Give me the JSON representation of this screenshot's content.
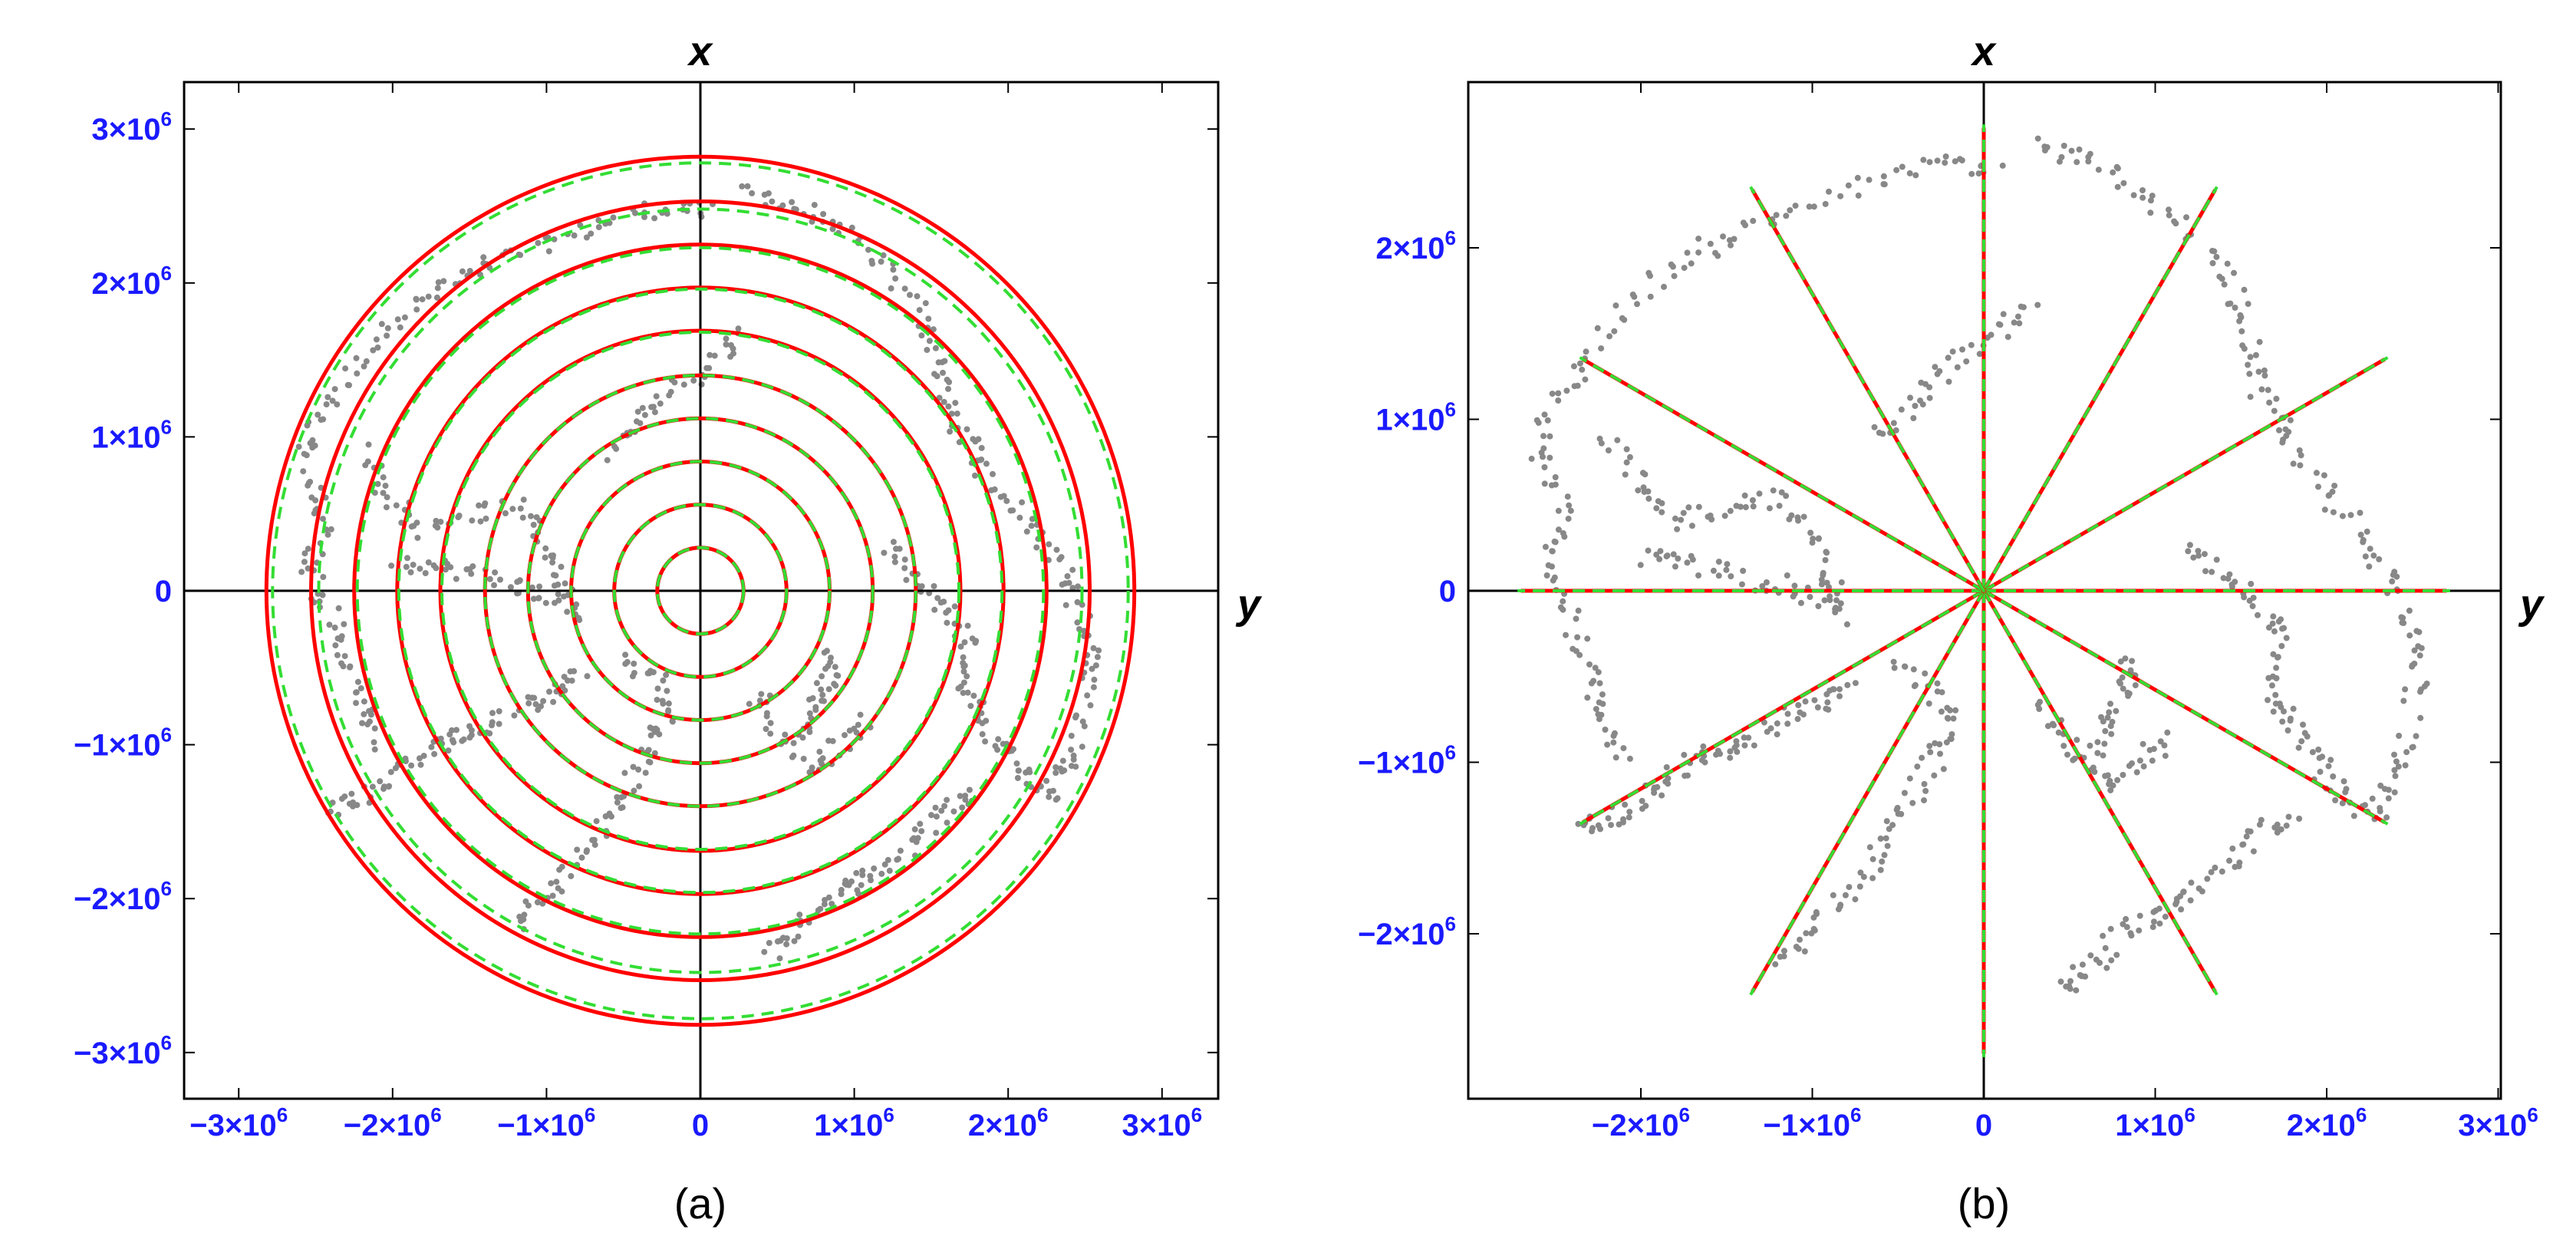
{
  "chart_data": [
    {
      "panel_label": "(a)",
      "type": "scatter",
      "xlabel": "y",
      "ylabel": "x",
      "xlim": [
        -3200000,
        3200000
      ],
      "ylim": [
        -3150000,
        3150000
      ],
      "x_ticks": [
        {
          "value": -3000000,
          "mantissa": "−3×10",
          "exp": "6"
        },
        {
          "value": -2000000,
          "mantissa": "−2×10",
          "exp": "6"
        },
        {
          "value": -1000000,
          "mantissa": "−1×10",
          "exp": "6"
        },
        {
          "value": 0,
          "mantissa": "0",
          "exp": ""
        },
        {
          "value": 1000000,
          "mantissa": "1×10",
          "exp": "6"
        },
        {
          "value": 2000000,
          "mantissa": "2×10",
          "exp": "6"
        },
        {
          "value": 3000000,
          "mantissa": "3×10",
          "exp": "6"
        }
      ],
      "y_ticks": [
        {
          "value": 3000000,
          "mantissa": "3×10",
          "exp": "6"
        },
        {
          "value": 2000000,
          "mantissa": "2×10",
          "exp": "6"
        },
        {
          "value": 1000000,
          "mantissa": "1×10",
          "exp": "6"
        },
        {
          "value": 0,
          "mantissa": "0",
          "exp": ""
        },
        {
          "value": -1000000,
          "mantissa": "−1×10",
          "exp": "6"
        },
        {
          "value": -2000000,
          "mantissa": "−2×10",
          "exp": "6"
        },
        {
          "value": -3000000,
          "mantissa": "−3×10",
          "exp": "6"
        }
      ],
      "circles": {
        "red_radii": [
          280000,
          560000,
          840000,
          1120000,
          1400000,
          1690000,
          1970000,
          2250000,
          2530000,
          2820000
        ],
        "green_dashed_radii": [
          280000,
          560000,
          840000,
          1120000,
          1400000,
          1680000,
          1960000,
          2230000,
          2480000,
          2780000
        ]
      },
      "grid": false,
      "colors": {
        "red": "#ff0000",
        "green": "#33dd33",
        "points": "#888888",
        "ticks": "#1a1aff"
      }
    },
    {
      "panel_label": "(b)",
      "type": "scatter",
      "xlabel": "y",
      "ylabel": "x",
      "xlim": [
        -2950000,
        3000000
      ],
      "ylim": [
        -2950000,
        2950000
      ],
      "x_ticks": [
        {
          "value": -2000000,
          "mantissa": "−2×10",
          "exp": "6"
        },
        {
          "value": -1000000,
          "mantissa": "−1×10",
          "exp": "6"
        },
        {
          "value": 0,
          "mantissa": "0",
          "exp": ""
        },
        {
          "value": 1000000,
          "mantissa": "1×10",
          "exp": "6"
        },
        {
          "value": 2000000,
          "mantissa": "2×10",
          "exp": "6"
        },
        {
          "value": 3000000,
          "mantissa": "3×10",
          "exp": "6"
        }
      ],
      "y_ticks": [
        {
          "value": 2000000,
          "mantissa": "2×10",
          "exp": "6"
        },
        {
          "value": 1000000,
          "mantissa": "1×10",
          "exp": "6"
        },
        {
          "value": 0,
          "mantissa": "0",
          "exp": ""
        },
        {
          "value": -1000000,
          "mantissa": "−1×10",
          "exp": "6"
        },
        {
          "value": -2000000,
          "mantissa": "−2×10",
          "exp": "6"
        }
      ],
      "rays": {
        "angles_deg_from_y_axis": [
          90,
          60,
          30,
          0,
          -30,
          -60,
          -90,
          -120,
          -150,
          180,
          150,
          120
        ],
        "red_length": 2700000,
        "green_dashed_length": 2720000
      },
      "grid": false,
      "colors": {
        "red": "#ff0000",
        "green": "#33dd33",
        "points": "#888888",
        "ticks": "#1a1aff"
      }
    }
  ]
}
